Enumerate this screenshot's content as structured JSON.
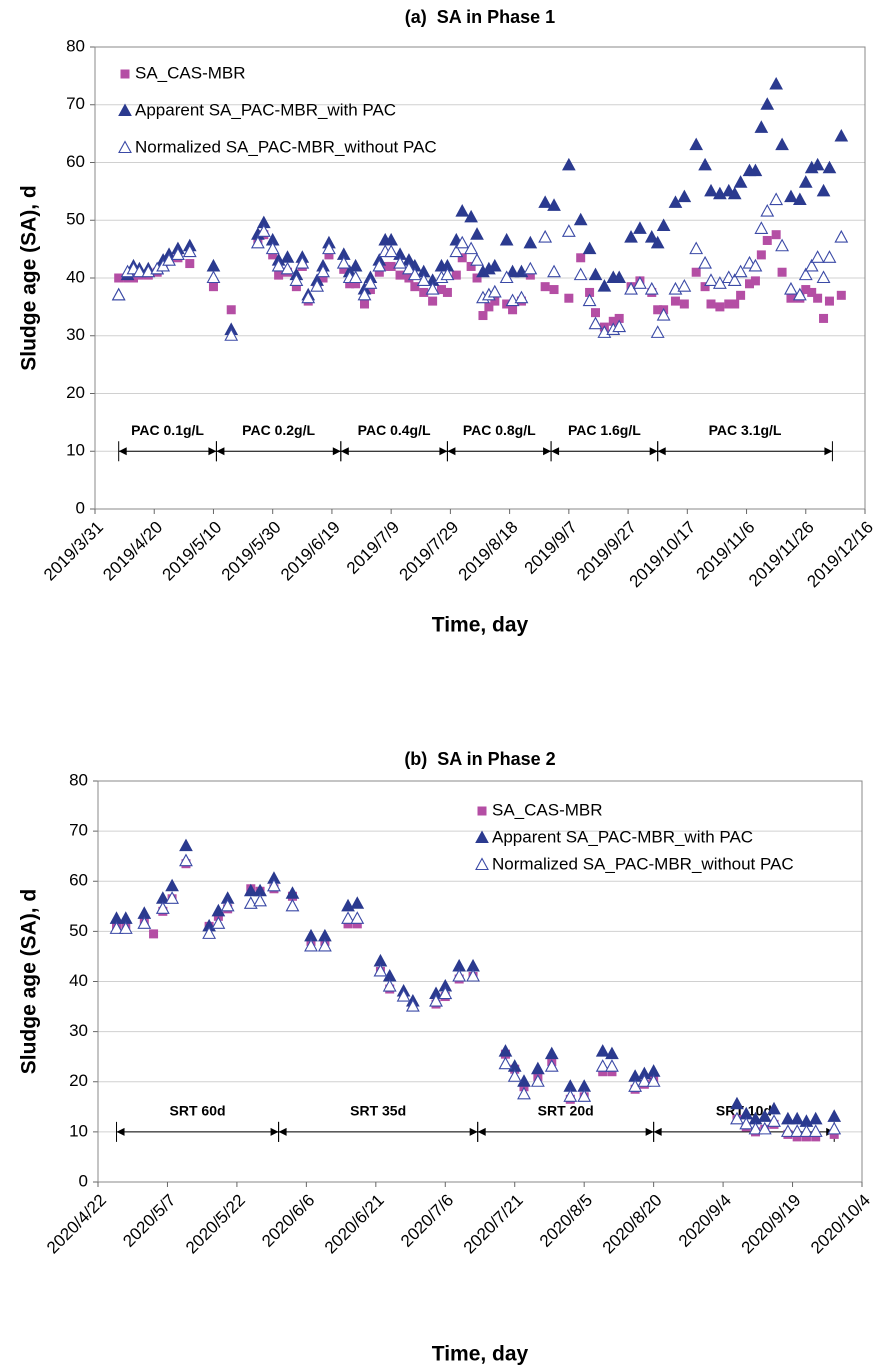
{
  "chart_data": [
    {
      "type": "scatter",
      "title": "(a)  SA in Phase 1",
      "x_label": "Time, day",
      "y_label": "Sludge age (SA), d",
      "xlim": [
        "2019/3/31",
        "2019/12/16"
      ],
      "xticks": [
        "2019/3/31",
        "2019/4/20",
        "2019/5/10",
        "2019/5/30",
        "2019/6/19",
        "2019/7/9",
        "2019/7/29",
        "2019/8/18",
        "2019/9/7",
        "2019/9/27",
        "2019/10/17",
        "2019/11/6",
        "2019/11/26",
        "2019/12/16"
      ],
      "ylim": [
        0,
        80
      ],
      "yticks": [
        0,
        10,
        20,
        30,
        40,
        50,
        60,
        70,
        80
      ],
      "grid": true,
      "legend": "upper left",
      "x": [
        "2019/4/8",
        "2019/4/11",
        "2019/4/13",
        "2019/4/15",
        "2019/4/18",
        "2019/4/21",
        "2019/4/23",
        "2019/4/25",
        "2019/4/28",
        "2019/5/2",
        "2019/5/10",
        "2019/5/16",
        "2019/5/25",
        "2019/5/27",
        "2019/5/30",
        "2019/6/1",
        "2019/6/4",
        "2019/6/7",
        "2019/6/9",
        "2019/6/11",
        "2019/6/14",
        "2019/6/16",
        "2019/6/18",
        "2019/6/23",
        "2019/6/25",
        "2019/6/27",
        "2019/6/30",
        "2019/7/2",
        "2019/7/5",
        "2019/7/7",
        "2019/7/9",
        "2019/7/12",
        "2019/7/15",
        "2019/7/17",
        "2019/7/20",
        "2019/7/23",
        "2019/7/26",
        "2019/7/28",
        "2019/7/31",
        "2019/8/2",
        "2019/8/5",
        "2019/8/7",
        "2019/8/9",
        "2019/8/11",
        "2019/8/13",
        "2019/8/17",
        "2019/8/19",
        "2019/8/22",
        "2019/8/25",
        "2019/8/30",
        "2019/9/2",
        "2019/9/7",
        "2019/9/11",
        "2019/9/14",
        "2019/9/16",
        "2019/9/19",
        "2019/9/22",
        "2019/9/24",
        "2019/9/28",
        "2019/10/1",
        "2019/10/5",
        "2019/10/7",
        "2019/10/9",
        "2019/10/13",
        "2019/10/16",
        "2019/10/20",
        "2019/10/23",
        "2019/10/25",
        "2019/10/28",
        "2019/10/31",
        "2019/11/2",
        "2019/11/4",
        "2019/11/7",
        "2019/11/9",
        "2019/11/11",
        "2019/11/13",
        "2019/11/16",
        "2019/11/18",
        "2019/11/21",
        "2019/11/24",
        "2019/11/26",
        "2019/11/28",
        "2019/11/30",
        "2019/12/2",
        "2019/12/4",
        "2019/12/8"
      ],
      "series": [
        {
          "name": "SA_CAS-MBR",
          "color": "#b44ea4",
          "marker": "square",
          "values": [
            40,
            40,
            40,
            40.5,
            40.5,
            41,
            42,
            43,
            43.5,
            42.5,
            38.5,
            34.5,
            46.5,
            47.5,
            44,
            40.5,
            41,
            38.5,
            42,
            36,
            38.5,
            40,
            44,
            41.5,
            39,
            39,
            35.5,
            38,
            41,
            42,
            42,
            40.5,
            40,
            38.5,
            37.5,
            36,
            38,
            37.5,
            40.5,
            43.5,
            42,
            40,
            33.5,
            35,
            36,
            35.5,
            34.5,
            36,
            40.5,
            38.5,
            38,
            36.5,
            43.5,
            37.5,
            34,
            31.5,
            32.5,
            33,
            38.5,
            39.5,
            37.5,
            34.5,
            34.5,
            36,
            35.5,
            41,
            38.5,
            35.5,
            35,
            35.5,
            35.5,
            37,
            39,
            39.5,
            44,
            46.5,
            47.5,
            41,
            36.5,
            36.5,
            38,
            37.5,
            36.5,
            33,
            36,
            37
          ]
        },
        {
          "name": "Apparent SA_PAC-MBR_with PAC",
          "color": "#2b3a8f",
          "marker": "triangle",
          "values": [
            37,
            40.5,
            42,
            41.5,
            41.5,
            41.5,
            43,
            44,
            45,
            45.5,
            42,
            31,
            47.5,
            49.5,
            46.5,
            43,
            43.5,
            40.5,
            43.5,
            37,
            39.5,
            42,
            46,
            44,
            41,
            42,
            38,
            40,
            43,
            46.5,
            46.5,
            44,
            43,
            42,
            41,
            39.5,
            42,
            42,
            46.5,
            51.5,
            50.5,
            47.5,
            41,
            41.5,
            42,
            46.5,
            41,
            41,
            46,
            53,
            52.5,
            59.5,
            50,
            45,
            40.5,
            38.5,
            40,
            40,
            47,
            48.5,
            47,
            46,
            49,
            53,
            54,
            63,
            59.5,
            55,
            54.5,
            55,
            54.5,
            56.5,
            58.5,
            58.5,
            66,
            70,
            73.5,
            63,
            54,
            53.5,
            56.5,
            59,
            59.5,
            55,
            59,
            64.5
          ]
        },
        {
          "name": "Normalized SA_PAC-MBR_without PAC",
          "color": "#3b4aa6",
          "marker": "triangle-open",
          "values": [
            37,
            41,
            41.5,
            41,
            41,
            41.5,
            42,
            43,
            44,
            44.5,
            40,
            30,
            46,
            48,
            45,
            42,
            41.5,
            39.5,
            42.5,
            36.5,
            38.5,
            41,
            45,
            42.5,
            40,
            40,
            37,
            39,
            42,
            44.5,
            44.5,
            42.5,
            41.5,
            40.5,
            39.5,
            38,
            40,
            40.5,
            44.5,
            46,
            45,
            43,
            36.5,
            37,
            37.5,
            40,
            36,
            36.5,
            41.5,
            47,
            41,
            48,
            40.5,
            36,
            32,
            30.5,
            31,
            31.5,
            38,
            39,
            38,
            30.5,
            33.5,
            38,
            38.5,
            45,
            42.5,
            39.5,
            39,
            40,
            39.5,
            41,
            42.5,
            42,
            48.5,
            51.5,
            53.5,
            45.5,
            38,
            37,
            40.5,
            42,
            43.5,
            40,
            43.5,
            47
          ]
        }
      ],
      "periods": [
        {
          "text": "PAC 0.1g/L",
          "x": [
            "2019/4/8",
            "2019/5/11"
          ]
        },
        {
          "text": "PAC 0.2g/L",
          "x": [
            "2019/5/11",
            "2019/6/22"
          ]
        },
        {
          "text": "PAC 0.4g/L",
          "x": [
            "2019/6/22",
            "2019/7/28"
          ]
        },
        {
          "text": "PAC 0.8g/L",
          "x": [
            "2019/7/28",
            "2019/9/1"
          ]
        },
        {
          "text": "PAC 1.6g/L",
          "x": [
            "2019/9/1",
            "2019/10/7"
          ]
        },
        {
          "text": "PAC 3.1g/L",
          "x": [
            "2019/10/7",
            "2019/12/5"
          ]
        }
      ]
    },
    {
      "type": "scatter",
      "title": "(b)  SA in Phase 2",
      "x_label": "Time, day",
      "y_label": "Sludge age (SA), d",
      "xlim": [
        "2020/4/22",
        "2020/10/4"
      ],
      "xticks": [
        "2020/4/22",
        "2020/5/7",
        "2020/5/22",
        "2020/6/6",
        "2020/6/21",
        "2020/7/6",
        "2020/7/21",
        "2020/8/5",
        "2020/8/20",
        "2020/9/4",
        "2020/9/19",
        "2020/10/4"
      ],
      "ylim": [
        0,
        80
      ],
      "yticks": [
        0,
        10,
        20,
        30,
        40,
        50,
        60,
        70,
        80
      ],
      "grid": true,
      "legend": "upper right",
      "x": [
        "2020/4/26",
        "2020/4/28",
        "2020/5/2",
        "2020/5/4",
        "2020/5/6",
        "2020/5/8",
        "2020/5/11",
        "2020/5/16",
        "2020/5/18",
        "2020/5/20",
        "2020/5/25",
        "2020/5/27",
        "2020/5/30",
        "2020/6/3",
        "2020/6/7",
        "2020/6/10",
        "2020/6/15",
        "2020/6/17",
        "2020/6/22",
        "2020/6/24",
        "2020/6/27",
        "2020/6/29",
        "2020/7/4",
        "2020/7/6",
        "2020/7/9",
        "2020/7/12",
        "2020/7/19",
        "2020/7/21",
        "2020/7/23",
        "2020/7/26",
        "2020/7/29",
        "2020/8/2",
        "2020/8/5",
        "2020/8/9",
        "2020/8/11",
        "2020/8/16",
        "2020/8/18",
        "2020/8/20",
        "2020/9/7",
        "2020/9/9",
        "2020/9/11",
        "2020/9/13",
        "2020/9/15",
        "2020/9/18",
        "2020/9/20",
        "2020/9/22",
        "2020/9/24",
        "2020/9/28"
      ],
      "series": [
        {
          "name": "SA_CAS-MBR",
          "color": "#b44ea4",
          "marker": "square",
          "values": [
            51,
            51,
            52,
            49.5,
            54,
            56.5,
            63.5,
            51,
            53,
            54.5,
            58.5,
            58,
            58.5,
            57,
            48,
            48,
            51.5,
            51.5,
            42,
            38.5,
            37,
            35,
            35.5,
            37,
            40.5,
            41,
            25.5,
            22.5,
            19,
            21,
            24,
            16.5,
            17,
            22,
            22,
            18.5,
            19.5,
            20.5,
            12.5,
            11,
            10,
            10.5,
            11.5,
            9.5,
            9,
            9,
            9,
            9.5
          ]
        },
        {
          "name": "Apparent SA_PAC-MBR_with PAC",
          "color": "#2b3a8f",
          "marker": "triangle",
          "values": [
            52.5,
            52.5,
            53.5,
            null,
            56.5,
            59,
            67,
            51,
            54,
            56.5,
            58,
            58,
            60.5,
            57.5,
            49,
            49,
            55,
            55.5,
            44,
            41,
            38,
            36,
            37.5,
            39,
            43,
            43,
            26,
            23,
            20,
            22.5,
            25.5,
            19,
            19,
            26,
            25.5,
            21,
            21.5,
            22,
            15.5,
            13.5,
            12.5,
            13,
            14.5,
            12.5,
            12.5,
            12,
            12.5,
            13
          ]
        },
        {
          "name": "Normalized SA_PAC-MBR_without PAC",
          "color": "#3b4aa6",
          "marker": "triangle-open",
          "values": [
            50.5,
            50.5,
            51.5,
            null,
            54.5,
            56.5,
            64,
            49.5,
            51.5,
            55,
            55.5,
            56,
            59,
            55,
            47,
            47,
            52.5,
            52.5,
            42,
            39,
            37,
            35,
            36,
            37.5,
            41,
            41,
            23.5,
            21,
            17.5,
            20,
            23,
            17,
            17,
            23,
            23,
            19,
            20,
            20,
            12.5,
            11.5,
            10.5,
            10.5,
            12,
            10,
            10,
            10,
            10,
            10.5
          ]
        }
      ],
      "periods": [
        {
          "text": "SRT 60d",
          "x": [
            "2020/4/26",
            "2020/5/31"
          ]
        },
        {
          "text": "SRT 35d",
          "x": [
            "2020/5/31",
            "2020/7/13"
          ]
        },
        {
          "text": "SRT 20d",
          "x": [
            "2020/7/13",
            "2020/8/20"
          ]
        },
        {
          "text": "SRT 10d",
          "x": [
            "2020/8/20",
            "2020/9/28"
          ]
        }
      ]
    }
  ]
}
